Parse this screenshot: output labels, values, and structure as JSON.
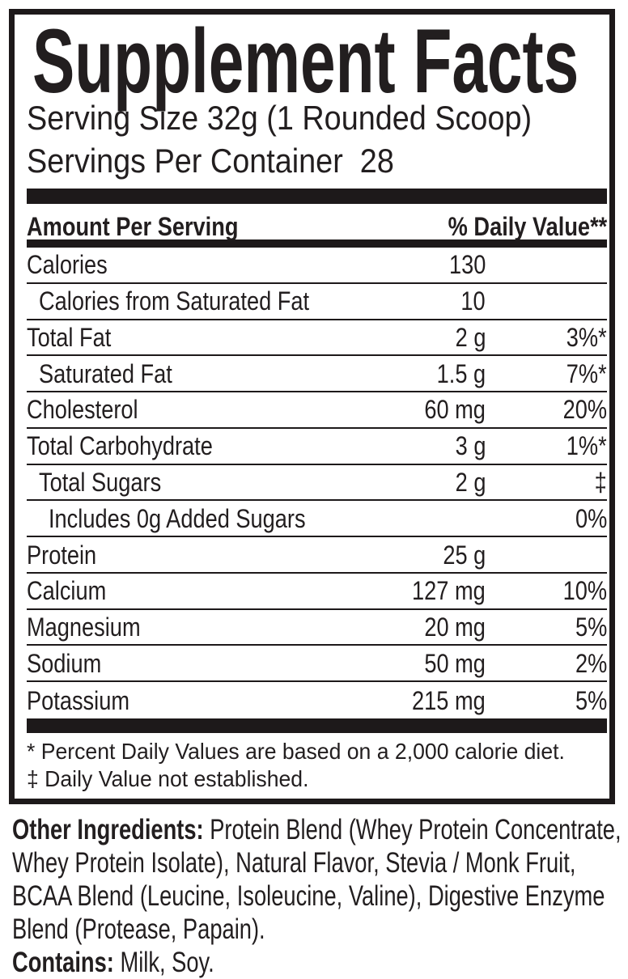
{
  "colors": {
    "ink": "#221e1f",
    "paper": "#ffffff",
    "rule": "#1d191a"
  },
  "panel": {
    "title": "Supplement Facts",
    "serving_size_line": "Serving Size 32g (1 Rounded Scoop)",
    "servings_line": "Servings Per Container  28",
    "column_headers": {
      "amount": "Amount Per Serving",
      "daily_value": "% Daily Value**"
    },
    "rows": [
      {
        "name": "Calories",
        "indent": 0,
        "amount": "130",
        "daily_value": ""
      },
      {
        "name": "Calories from Saturated Fat",
        "indent": 1,
        "amount": "10",
        "daily_value": ""
      },
      {
        "name": "Total Fat",
        "indent": 0,
        "amount": "2 g",
        "daily_value": "3%*"
      },
      {
        "name": "Saturated Fat",
        "indent": 1,
        "amount": "1.5 g",
        "daily_value": "7%*"
      },
      {
        "name": "Cholesterol",
        "indent": 0,
        "amount": "60 mg",
        "daily_value": "20%"
      },
      {
        "name": "Total Carbohydrate",
        "indent": 0,
        "amount": "3 g",
        "daily_value": "1%*"
      },
      {
        "name": "Total Sugars",
        "indent": 1,
        "amount": "2 g",
        "daily_value": "‡"
      },
      {
        "name": "Includes 0g Added Sugars",
        "indent": 2,
        "amount": "",
        "daily_value": "0%"
      },
      {
        "name": "Protein",
        "indent": 0,
        "amount": "25 g",
        "daily_value": ""
      },
      {
        "name": "Calcium",
        "indent": 0,
        "amount": "127 mg",
        "daily_value": "10%"
      },
      {
        "name": "Magnesium",
        "indent": 0,
        "amount": "20 mg",
        "daily_value": "5%"
      },
      {
        "name": "Sodium",
        "indent": 0,
        "amount": "50 mg",
        "daily_value": "2%"
      },
      {
        "name": "Potassium",
        "indent": 0,
        "amount": "215 mg",
        "daily_value": "5%"
      }
    ],
    "footnotes": [
      "* Percent Daily Values are based on a 2,000 calorie diet.",
      "‡ Daily Value not established."
    ]
  },
  "other_ingredients": {
    "label": "Other Ingredients:",
    "lines": [
      "Protein Blend (Whey Protein Concentrate,",
      "Whey Protein Isolate), Natural Flavor, Stevia / Monk Fruit,",
      "BCAA Blend (Leucine, Isoleucine, Valine), Digestive Enzyme",
      "Blend (Protease, Papain)."
    ],
    "contains_label": "Contains:",
    "contains_text": "Milk, Soy."
  }
}
